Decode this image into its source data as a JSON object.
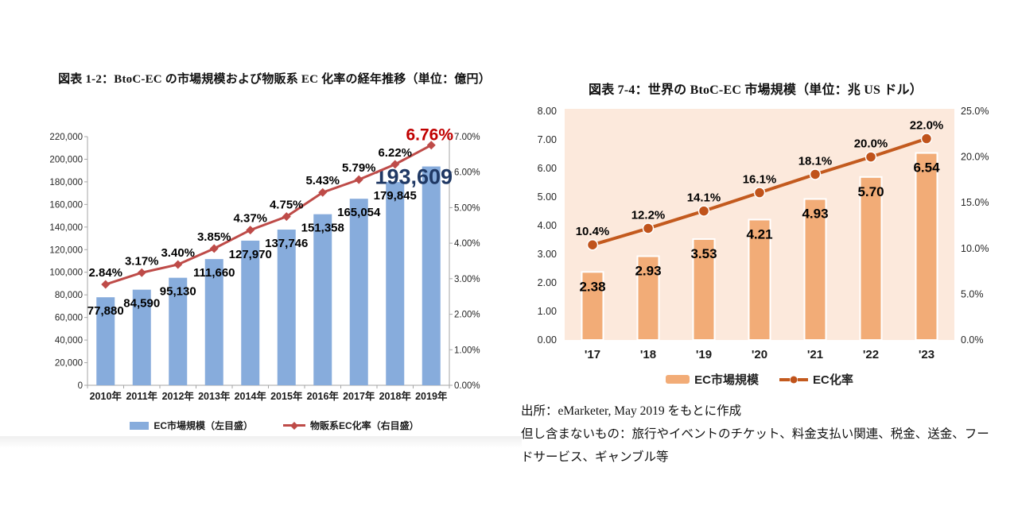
{
  "page": {
    "background": "#ffffff"
  },
  "footer": {
    "source_line": "出所：eMarketer, May 2019 をもとに作成",
    "exclusion_line": "但し含まないもの：旅行やイベントのチケット、料金支払い関連、税金、送金、フードサービス、ギャンブル等"
  },
  "chart_data": [
    {
      "id": "domestic-btoc-ec",
      "type": "combo-bar-line",
      "title": "図表 1-2：BtoC-EC の市場規模および物販系 EC 化率の経年推移（単位：億円）",
      "categories": [
        "2010年",
        "2011年",
        "2012年",
        "2013年",
        "2014年",
        "2015年",
        "2016年",
        "2017年",
        "2018年",
        "2019年"
      ],
      "series": [
        {
          "name": "EC市場規模（左目盛）",
          "type": "bar",
          "axis": "left",
          "color": "#87ACDC",
          "values": [
            77880,
            84590,
            95130,
            111660,
            127970,
            137746,
            151358,
            165054,
            179845,
            193609
          ],
          "labels": [
            "77,880",
            "84,590",
            "95,130",
            "111,660",
            "127,970",
            "137,746",
            "151,358",
            "165,054",
            "179,845",
            "193,609"
          ]
        },
        {
          "name": "物販系EC化率（右目盛）",
          "type": "line",
          "axis": "right",
          "color": "#BE4B48",
          "marker_color": "#BE4B48",
          "values": [
            2.84,
            3.17,
            3.4,
            3.85,
            4.37,
            4.75,
            5.43,
            5.79,
            6.22,
            6.76
          ],
          "labels": [
            "2.84%",
            "3.17%",
            "3.40%",
            "3.85%",
            "4.37%",
            "4.75%",
            "5.43%",
            "5.79%",
            "6.22%",
            "6.76%"
          ]
        }
      ],
      "left_axis": {
        "min": 0,
        "max": 220000,
        "tick_labels": [
          "0",
          "20,000",
          "40,000",
          "60,000",
          "80,000",
          "100,000",
          "120,000",
          "140,000",
          "160,000",
          "180,000",
          "200,000",
          "220,000"
        ],
        "tick_values": [
          0,
          20000,
          40000,
          60000,
          80000,
          100000,
          120000,
          140000,
          160000,
          180000,
          200000,
          220000
        ]
      },
      "right_axis": {
        "min": 0,
        "max": 7,
        "tick_labels": [
          "0.00%",
          "1.00%",
          "2.00%",
          "3.00%",
          "4.00%",
          "5.00%",
          "6.00%",
          "7.00%"
        ],
        "tick_values": [
          0,
          1,
          2,
          3,
          4,
          5,
          6,
          7
        ]
      },
      "grid": false,
      "legend_position": "bottom",
      "highlight": {
        "last_value_color": "#1F3864",
        "last_percent_color": "#C00000"
      }
    },
    {
      "id": "global-btoc-ec",
      "type": "combo-bar-line",
      "title": "図表 7-4：世界の BtoC-EC 市場規模（単位：兆 US ドル）",
      "categories": [
        "'17",
        "'18",
        "'19",
        "'20",
        "'21",
        "'22",
        "'23"
      ],
      "series": [
        {
          "name": "EC市場規模",
          "type": "bar",
          "axis": "left",
          "color": "#F2AC77",
          "values": [
            2.38,
            2.93,
            3.53,
            4.21,
            4.93,
            5.7,
            6.54
          ],
          "labels": [
            "2.38",
            "2.93",
            "3.53",
            "4.21",
            "4.93",
            "5.70",
            "6.54"
          ]
        },
        {
          "name": "EC化率",
          "type": "line",
          "axis": "right",
          "color": "#C35A1E",
          "marker_color": "#C0531B",
          "values": [
            10.4,
            12.2,
            14.1,
            16.1,
            18.1,
            20.0,
            22.0
          ],
          "labels": [
            "10.4%",
            "12.2%",
            "14.1%",
            "16.1%",
            "18.1%",
            "20.0%",
            "22.0%"
          ]
        }
      ],
      "left_axis": {
        "min": 0,
        "max": 8,
        "tick_labels": [
          "0.00",
          "1.00",
          "2.00",
          "3.00",
          "4.00",
          "5.00",
          "6.00",
          "7.00",
          "8.00"
        ],
        "tick_values": [
          0,
          1,
          2,
          3,
          4,
          5,
          6,
          7,
          8
        ]
      },
      "right_axis": {
        "min": 0,
        "max": 25,
        "tick_labels": [
          "0.0%",
          "5.0%",
          "10.0%",
          "15.0%",
          "20.0%",
          "25.0%"
        ],
        "tick_values": [
          0,
          5,
          10,
          15,
          20,
          25
        ]
      },
      "grid": false,
      "plot_background": "#FCE9DC",
      "legend_position": "bottom"
    }
  ]
}
